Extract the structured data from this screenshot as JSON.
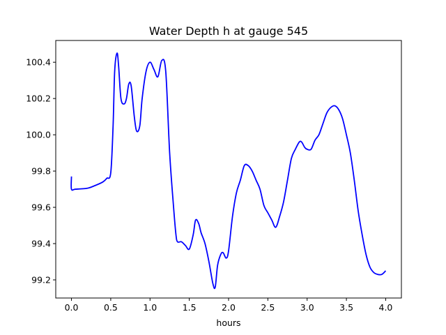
{
  "chart_data": {
    "type": "line",
    "title": "Water Depth h at gauge 545",
    "xlabel": "hours",
    "ylabel": "",
    "xlim": [
      -0.2,
      4.2
    ],
    "ylim": [
      99.1,
      100.52
    ],
    "x_ticks": [
      {
        "value": 0.0,
        "label": "0.0"
      },
      {
        "value": 0.5,
        "label": "0.5"
      },
      {
        "value": 1.0,
        "label": "1.0"
      },
      {
        "value": 1.5,
        "label": "1.5"
      },
      {
        "value": 2.0,
        "label": "2.0"
      },
      {
        "value": 2.5,
        "label": "2.5"
      },
      {
        "value": 3.0,
        "label": "3.0"
      },
      {
        "value": 3.5,
        "label": "3.5"
      },
      {
        "value": 4.0,
        "label": "4.0"
      }
    ],
    "y_ticks": [
      {
        "value": 99.2,
        "label": "99.2"
      },
      {
        "value": 99.4,
        "label": "99.4"
      },
      {
        "value": 99.6,
        "label": "99.6"
      },
      {
        "value": 99.8,
        "label": "99.8"
      },
      {
        "value": 100.0,
        "label": "100.0"
      },
      {
        "value": 100.2,
        "label": "100.2"
      },
      {
        "value": 100.4,
        "label": "100.4"
      }
    ],
    "grid": false,
    "legend": "none",
    "series": [
      {
        "color": "#0000ff",
        "points": [
          [
            0.0,
            99.77
          ],
          [
            0.0,
            99.7
          ],
          [
            0.05,
            99.7
          ],
          [
            0.2,
            99.705
          ],
          [
            0.3,
            99.72
          ],
          [
            0.4,
            99.74
          ],
          [
            0.45,
            99.76
          ],
          [
            0.5,
            99.79
          ],
          [
            0.53,
            100.05
          ],
          [
            0.55,
            100.35
          ],
          [
            0.58,
            100.45
          ],
          [
            0.6,
            100.38
          ],
          [
            0.63,
            100.2
          ],
          [
            0.67,
            100.17
          ],
          [
            0.7,
            100.2
          ],
          [
            0.73,
            100.28
          ],
          [
            0.76,
            100.27
          ],
          [
            0.8,
            100.1
          ],
          [
            0.83,
            100.02
          ],
          [
            0.87,
            100.05
          ],
          [
            0.9,
            100.2
          ],
          [
            0.95,
            100.35
          ],
          [
            1.0,
            100.4
          ],
          [
            1.05,
            100.36
          ],
          [
            1.1,
            100.32
          ],
          [
            1.15,
            100.41
          ],
          [
            1.2,
            100.35
          ],
          [
            1.25,
            99.9
          ],
          [
            1.3,
            99.6
          ],
          [
            1.33,
            99.45
          ],
          [
            1.35,
            99.41
          ],
          [
            1.4,
            99.41
          ],
          [
            1.45,
            99.39
          ],
          [
            1.5,
            99.37
          ],
          [
            1.55,
            99.45
          ],
          [
            1.58,
            99.53
          ],
          [
            1.62,
            99.51
          ],
          [
            1.65,
            99.46
          ],
          [
            1.7,
            99.4
          ],
          [
            1.75,
            99.3
          ],
          [
            1.8,
            99.18
          ],
          [
            1.83,
            99.16
          ],
          [
            1.86,
            99.28
          ],
          [
            1.9,
            99.34
          ],
          [
            1.93,
            99.35
          ],
          [
            1.97,
            99.32
          ],
          [
            2.0,
            99.36
          ],
          [
            2.05,
            99.55
          ],
          [
            2.1,
            99.68
          ],
          [
            2.15,
            99.75
          ],
          [
            2.2,
            99.83
          ],
          [
            2.25,
            99.83
          ],
          [
            2.3,
            99.8
          ],
          [
            2.35,
            99.75
          ],
          [
            2.4,
            99.7
          ],
          [
            2.45,
            99.61
          ],
          [
            2.5,
            99.57
          ],
          [
            2.55,
            99.53
          ],
          [
            2.6,
            99.49
          ],
          [
            2.65,
            99.55
          ],
          [
            2.7,
            99.63
          ],
          [
            2.75,
            99.75
          ],
          [
            2.8,
            99.87
          ],
          [
            2.85,
            99.92
          ],
          [
            2.9,
            99.96
          ],
          [
            2.93,
            99.96
          ],
          [
            2.97,
            99.93
          ],
          [
            3.0,
            99.92
          ],
          [
            3.05,
            99.92
          ],
          [
            3.1,
            99.97
          ],
          [
            3.15,
            100.0
          ],
          [
            3.2,
            100.06
          ],
          [
            3.25,
            100.12
          ],
          [
            3.3,
            100.15
          ],
          [
            3.35,
            100.16
          ],
          [
            3.4,
            100.14
          ],
          [
            3.45,
            100.09
          ],
          [
            3.5,
            100.0
          ],
          [
            3.55,
            99.9
          ],
          [
            3.6,
            99.75
          ],
          [
            3.65,
            99.58
          ],
          [
            3.7,
            99.45
          ],
          [
            3.75,
            99.34
          ],
          [
            3.8,
            99.27
          ],
          [
            3.85,
            99.24
          ],
          [
            3.9,
            99.23
          ],
          [
            3.95,
            99.23
          ],
          [
            4.0,
            99.25
          ]
        ]
      }
    ]
  }
}
